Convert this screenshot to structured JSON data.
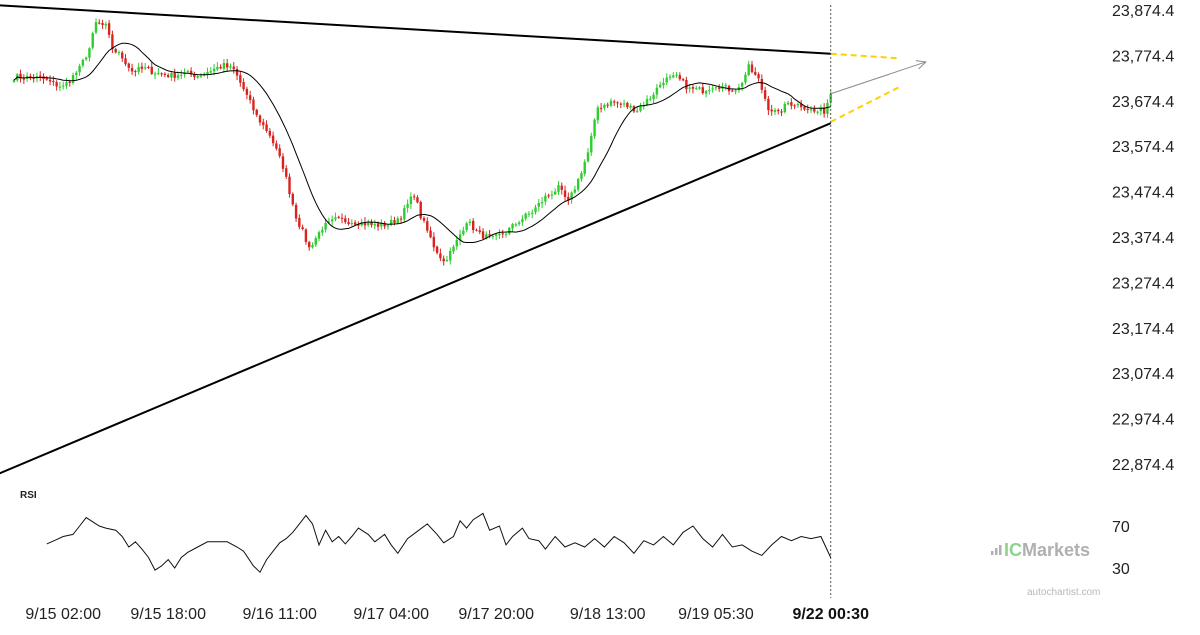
{
  "chart_data": {
    "type": "candlestick",
    "symbol": "",
    "price_axis": {
      "ticks": [
        "23,874.4",
        "23,774.4",
        "23,674.4",
        "23,574.4",
        "23,474.4",
        "23,374.4",
        "23,274.4",
        "23,174.4",
        "23,074.4",
        "22,974.4",
        "22,874.4"
      ],
      "ylim": [
        22834,
        23900
      ]
    },
    "time_axis": {
      "ticks": [
        {
          "label": "9/15 02:00",
          "bar": 15,
          "bold": false
        },
        {
          "label": "9/15 18:00",
          "bar": 47,
          "bold": false
        },
        {
          "label": "9/16 11:00",
          "bar": 81,
          "bold": false
        },
        {
          "label": "9/17 04:00",
          "bar": 115,
          "bold": false
        },
        {
          "label": "9/17 20:00",
          "bar": 147,
          "bold": false
        },
        {
          "label": "9/18 13:00",
          "bar": 181,
          "bold": false
        },
        {
          "label": "9/19 05:30",
          "bar": 214,
          "bold": false
        },
        {
          "label": "9/22 00:30",
          "bar": 249,
          "bold": true
        }
      ]
    },
    "bar_count": 250,
    "price_path": [
      [
        0,
        23727
      ],
      [
        8,
        23725
      ],
      [
        12,
        23712
      ],
      [
        15,
        23705
      ],
      [
        17,
        23720
      ],
      [
        20,
        23745
      ],
      [
        23,
        23790
      ],
      [
        25,
        23845
      ],
      [
        28,
        23838
      ],
      [
        30,
        23790
      ],
      [
        33,
        23770
      ],
      [
        36,
        23740
      ],
      [
        40,
        23745
      ],
      [
        44,
        23735
      ],
      [
        48,
        23730
      ],
      [
        52,
        23735
      ],
      [
        56,
        23730
      ],
      [
        60,
        23742
      ],
      [
        64,
        23752
      ],
      [
        67,
        23742
      ],
      [
        70,
        23700
      ],
      [
        74,
        23640
      ],
      [
        78,
        23600
      ],
      [
        82,
        23530
      ],
      [
        86,
        23420
      ],
      [
        90,
        23350
      ],
      [
        94,
        23395
      ],
      [
        98,
        23412
      ],
      [
        102,
        23410
      ],
      [
        106,
        23405
      ],
      [
        110,
        23400
      ],
      [
        114,
        23402
      ],
      [
        118,
        23420
      ],
      [
        122,
        23470
      ],
      [
        124,
        23420
      ],
      [
        128,
        23355
      ],
      [
        131,
        23320
      ],
      [
        134,
        23350
      ],
      [
        138,
        23410
      ],
      [
        142,
        23380
      ],
      [
        146,
        23370
      ],
      [
        150,
        23385
      ],
      [
        154,
        23410
      ],
      [
        158,
        23430
      ],
      [
        162,
        23462
      ],
      [
        166,
        23482
      ],
      [
        169,
        23450
      ],
      [
        172,
        23500
      ],
      [
        175,
        23560
      ],
      [
        178,
        23660
      ],
      [
        182,
        23672
      ],
      [
        186,
        23665
      ],
      [
        190,
        23655
      ],
      [
        194,
        23682
      ],
      [
        198,
        23720
      ],
      [
        202,
        23726
      ],
      [
        206,
        23700
      ],
      [
        210,
        23698
      ],
      [
        214,
        23710
      ],
      [
        218,
        23700
      ],
      [
        221,
        23702
      ],
      [
        224,
        23748
      ],
      [
        227,
        23720
      ],
      [
        230,
        23660
      ],
      [
        233,
        23645
      ],
      [
        236,
        23670
      ],
      [
        240,
        23665
      ],
      [
        244,
        23650
      ],
      [
        247,
        23652
      ],
      [
        249,
        23690
      ]
    ],
    "moving_average": {
      "period": 14
    },
    "trendlines": [
      {
        "name": "resistance",
        "from": {
          "bar": -5,
          "price": 23885
        },
        "to": {
          "bar": 249,
          "price": 23778
        },
        "color": "#000000"
      },
      {
        "name": "support",
        "from": {
          "bar": -5,
          "price": 22852
        },
        "to": {
          "bar": 249,
          "price": 23625
        },
        "color": "#000000"
      }
    ],
    "projection": {
      "upper": {
        "from": {
          "bar": 249,
          "price": 23778
        },
        "to": {
          "bar": 270,
          "price": 23768
        }
      },
      "lower": {
        "from": {
          "bar": 249,
          "price": 23628
        },
        "to": {
          "bar": 270,
          "price": 23705
        }
      },
      "arrow": {
        "from": {
          "bar": 249,
          "price": 23690
        },
        "to": {
          "bar": 278,
          "price": 23760
        }
      },
      "color": "#ffd000"
    },
    "current_bar_index": 249,
    "rsi": {
      "label": "RSI",
      "levels": [
        70,
        30
      ],
      "path": [
        [
          10,
          53
        ],
        [
          13,
          57
        ],
        [
          15,
          60
        ],
        [
          18,
          62
        ],
        [
          20,
          70
        ],
        [
          22,
          78
        ],
        [
          24,
          74
        ],
        [
          26,
          70
        ],
        [
          28,
          68
        ],
        [
          31,
          66
        ],
        [
          33,
          60
        ],
        [
          35,
          50
        ],
        [
          37,
          55
        ],
        [
          39,
          48
        ],
        [
          41,
          40
        ],
        [
          43,
          28
        ],
        [
          45,
          32
        ],
        [
          47,
          38
        ],
        [
          49,
          30
        ],
        [
          51,
          40
        ],
        [
          53,
          45
        ],
        [
          56,
          50
        ],
        [
          59,
          55
        ],
        [
          62,
          55
        ],
        [
          65,
          55
        ],
        [
          68,
          50
        ],
        [
          70,
          46
        ],
        [
          73,
          32
        ],
        [
          75,
          26
        ],
        [
          77,
          38
        ],
        [
          79,
          46
        ],
        [
          81,
          54
        ],
        [
          83,
          58
        ],
        [
          85,
          64
        ],
        [
          87,
          72
        ],
        [
          89,
          80
        ],
        [
          91,
          72
        ],
        [
          93,
          52
        ],
        [
          95,
          66
        ],
        [
          97,
          55
        ],
        [
          99,
          60
        ],
        [
          101,
          53
        ],
        [
          103,
          60
        ],
        [
          105,
          68
        ],
        [
          108,
          62
        ],
        [
          110,
          55
        ],
        [
          113,
          62
        ],
        [
          115,
          52
        ],
        [
          117,
          44
        ],
        [
          120,
          58
        ],
        [
          123,
          65
        ],
        [
          126,
          72
        ],
        [
          129,
          62
        ],
        [
          131,
          54
        ],
        [
          134,
          60
        ],
        [
          136,
          75
        ],
        [
          138,
          68
        ],
        [
          140,
          76
        ],
        [
          143,
          82
        ],
        [
          145,
          66
        ],
        [
          148,
          70
        ],
        [
          150,
          52
        ],
        [
          152,
          60
        ],
        [
          155,
          68
        ],
        [
          157,
          58
        ],
        [
          160,
          56
        ],
        [
          162,
          48
        ],
        [
          165,
          60
        ],
        [
          168,
          50
        ],
        [
          171,
          54
        ],
        [
          174,
          50
        ],
        [
          177,
          58
        ],
        [
          180,
          50
        ],
        [
          183,
          60
        ],
        [
          186,
          54
        ],
        [
          189,
          44
        ],
        [
          192,
          56
        ],
        [
          195,
          52
        ],
        [
          198,
          60
        ],
        [
          201,
          52
        ],
        [
          204,
          64
        ],
        [
          207,
          70
        ],
        [
          210,
          58
        ],
        [
          213,
          50
        ],
        [
          216,
          62
        ],
        [
          219,
          50
        ],
        [
          222,
          52
        ],
        [
          225,
          46
        ],
        [
          228,
          42
        ],
        [
          231,
          52
        ],
        [
          234,
          60
        ],
        [
          237,
          56
        ],
        [
          240,
          60
        ],
        [
          243,
          58
        ],
        [
          246,
          60
        ],
        [
          249,
          40
        ]
      ]
    },
    "grid": false,
    "legend": "none"
  },
  "watermark": {
    "brand_ic": "IC",
    "brand_rest": "Markets",
    "sub": "autochartist.com"
  },
  "colors": {
    "up": "#2ecc2e",
    "down": "#d8231f",
    "ma": "#000000",
    "trend": "#000000",
    "projection": "#ffd000",
    "arrow": "#8a8a8a",
    "axis_text": "#222222",
    "watermark": "#b0b0b0",
    "watermark_ic": "#8fd18f"
  }
}
